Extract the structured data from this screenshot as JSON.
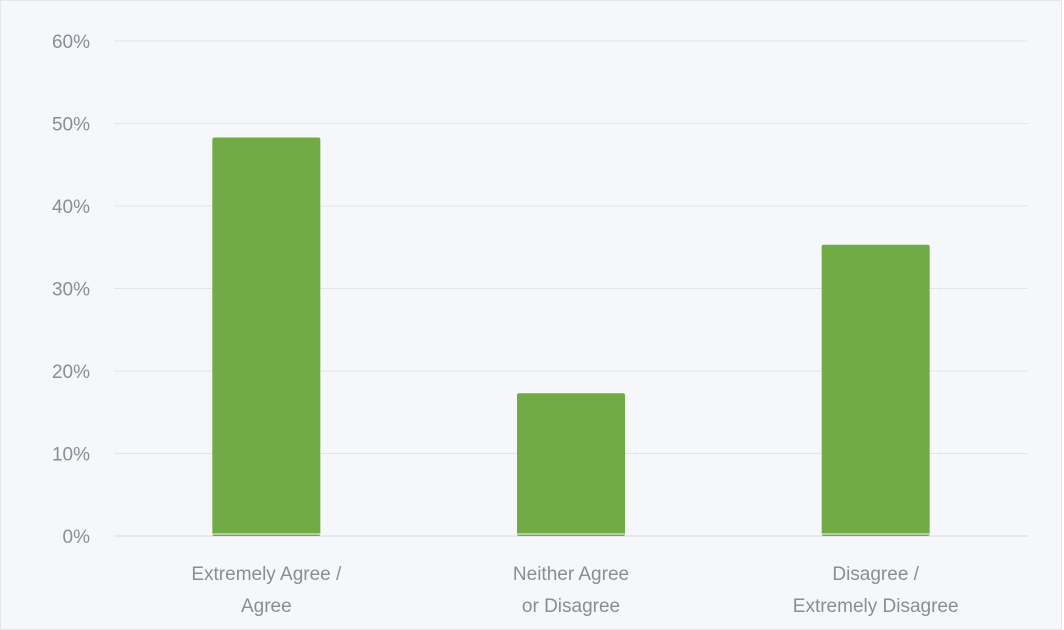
{
  "chart_data": {
    "type": "bar",
    "title": "",
    "xlabel": "",
    "ylabel": "",
    "categories": [
      [
        "Extremely Agree /",
        "Agree"
      ],
      [
        "Neither Agree",
        "or Disagree"
      ],
      [
        "Disagree /",
        "Extremely Disagree"
      ]
    ],
    "values": [
      48.3,
      17.3,
      35.3
    ],
    "ylim": [
      0,
      60
    ],
    "yticks": [
      0,
      10,
      20,
      30,
      40,
      50,
      60
    ],
    "ytick_format": "{v}%",
    "grid": true,
    "legend": "none",
    "bar_color": "#70ab46"
  },
  "colors": {
    "background": "#f6f7fa",
    "grid": "#e3e5ea",
    "text": "#8a8d93",
    "bar": "#70ab46"
  }
}
